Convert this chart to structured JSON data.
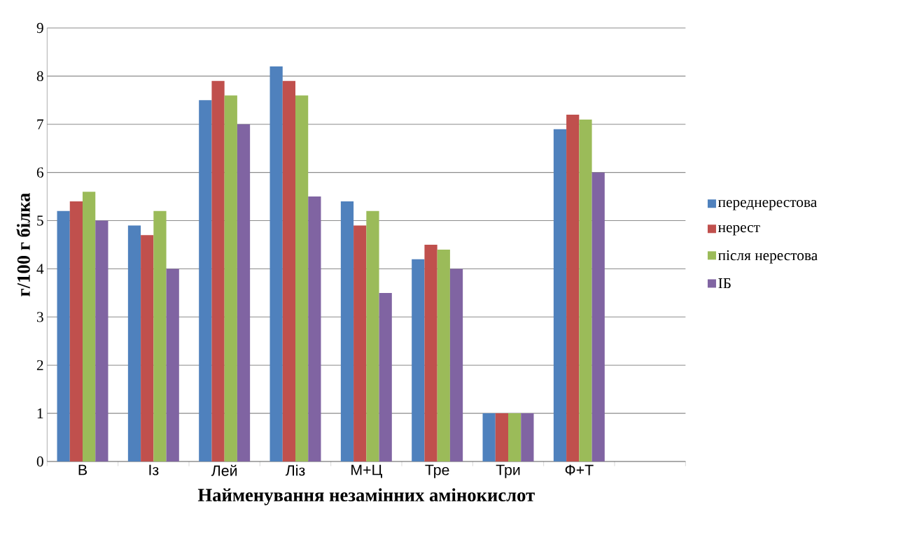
{
  "chart_data": {
    "type": "bar",
    "xlabel": "Найменування незамінних амінокислот",
    "ylabel": "г/100 г білка",
    "categories": [
      "В",
      "Із",
      "Лей",
      "Ліз",
      "М+Ц",
      "Тре",
      "Три",
      "Ф+Т",
      null
    ],
    "series": [
      {
        "name": "переднерестова",
        "color": "#4f81bd",
        "values": [
          5.2,
          4.9,
          7.5,
          8.2,
          5.4,
          4.2,
          1,
          6.9,
          null
        ]
      },
      {
        "name": "нерест",
        "color": "#c0504d",
        "values": [
          5.4,
          4.7,
          7.9,
          7.9,
          4.9,
          4.5,
          1,
          7.2,
          null
        ]
      },
      {
        "name": "після нерестова",
        "color": "#9bbb59",
        "values": [
          5.6,
          5.2,
          7.6,
          7.6,
          5.2,
          4.4,
          1,
          7.1,
          null
        ]
      },
      {
        "name": "ІБ",
        "color": "#8064a2",
        "values": [
          5.0,
          4.0,
          7.0,
          5.5,
          3.5,
          4.0,
          1,
          6.0,
          null
        ]
      }
    ],
    "ylim": [
      0,
      9
    ],
    "yticks": [
      0,
      1,
      2,
      3,
      4,
      5,
      6,
      7,
      8,
      9
    ],
    "grid": "y",
    "legend": "right"
  }
}
